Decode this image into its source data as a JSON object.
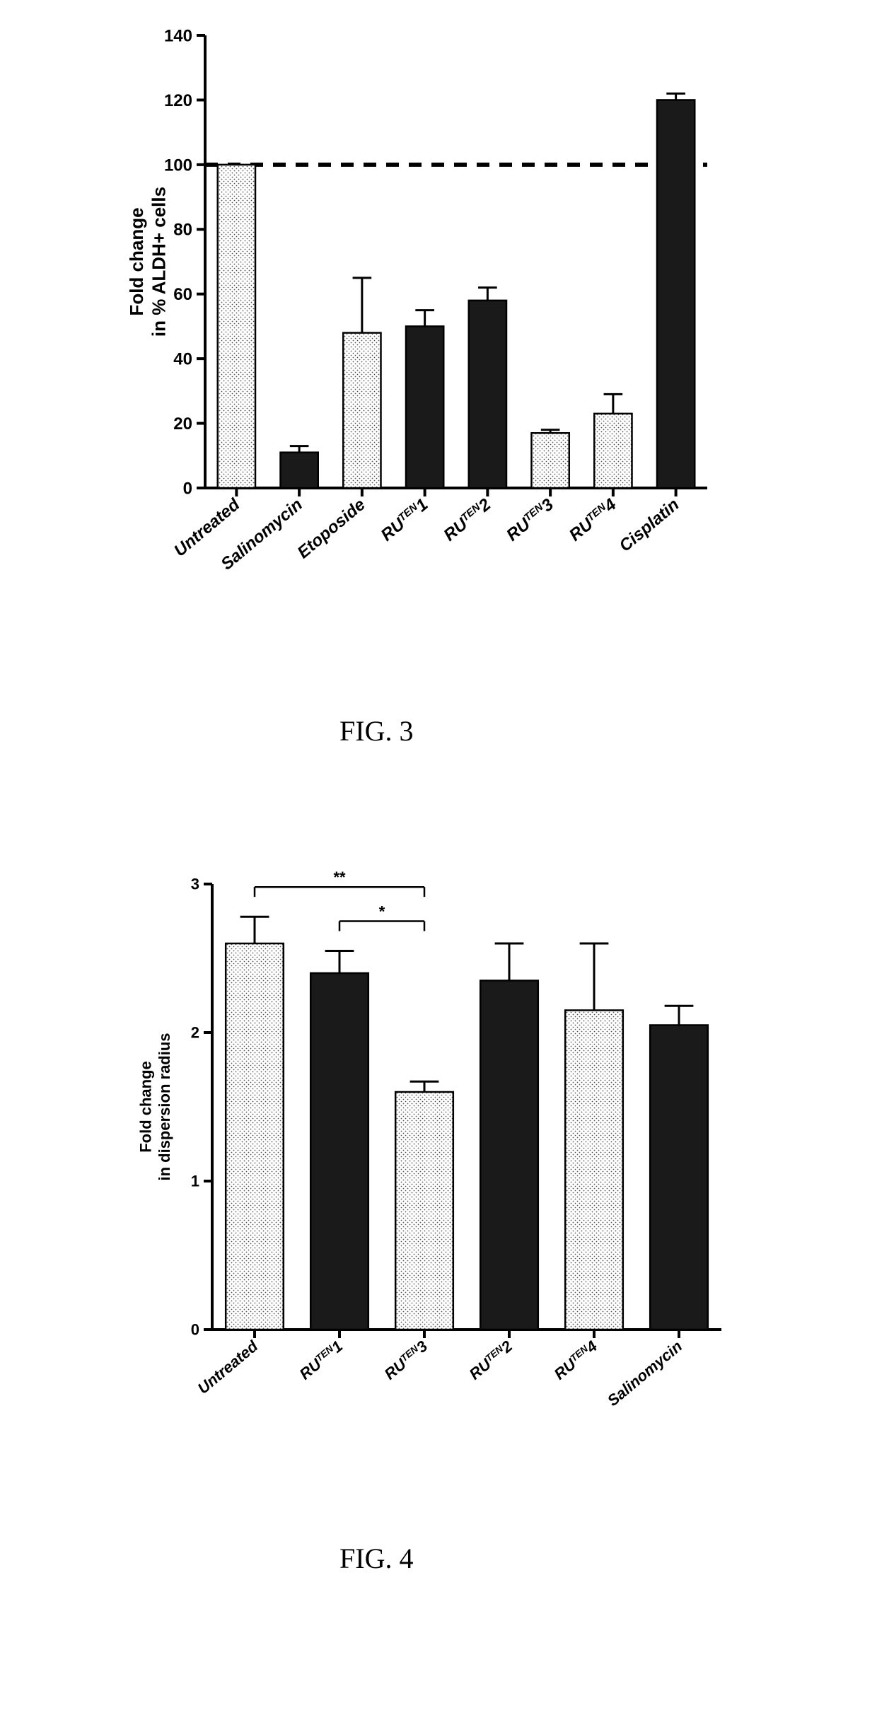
{
  "fig3": {
    "type": "bar",
    "caption": "FIG. 3",
    "ylabel_line1": "Fold change",
    "ylabel_line2": "in % ALDH+ cells",
    "ylim": [
      0,
      140
    ],
    "yticks": [
      0,
      20,
      40,
      60,
      80,
      100,
      120,
      140
    ],
    "reference_line": 100,
    "categories": [
      "Untreated",
      "Salinomycin",
      "Etoposide",
      "RU^TEN_1",
      "RU^TEN_2",
      "RU^TEN_3",
      "RU^TEN_4",
      "Cisplatin"
    ],
    "values": [
      100,
      11,
      48,
      50,
      58,
      17,
      23,
      120
    ],
    "error_up": [
      0,
      2,
      17,
      5,
      4,
      1,
      6,
      2
    ],
    "fills": [
      "dotted",
      "solid",
      "dotted",
      "solid",
      "solid",
      "dotted",
      "dotted",
      "solid"
    ],
    "axis_color": "#000000",
    "bar_solid_color": "#1a1a1a",
    "bar_dot_color": "#555555",
    "background_color": "#ffffff",
    "axis_fontsize": 26,
    "tick_fontsize": 24,
    "xlabel_fontsize": 24,
    "bar_width": 0.6
  },
  "fig4": {
    "type": "bar",
    "caption": "FIG. 4",
    "ylabel_line1": "Fold change",
    "ylabel_line2": "in dispersion radius",
    "ylim": [
      0,
      3
    ],
    "yticks": [
      0,
      1,
      2,
      3
    ],
    "categories": [
      "Untreated",
      "RU^TEN_1",
      "RU^TEN_3",
      "RU^TEN_2",
      "RU^TEN_4",
      "Salinomycin"
    ],
    "values": [
      2.6,
      2.4,
      1.6,
      2.35,
      2.15,
      2.05
    ],
    "error_up": [
      0.18,
      0.15,
      0.07,
      0.25,
      0.45,
      0.13
    ],
    "fills": [
      "dotted",
      "solid",
      "dotted",
      "solid",
      "dotted",
      "solid"
    ],
    "axis_color": "#000000",
    "bar_solid_color": "#1a1a1a",
    "bar_dot_color": "#555555",
    "background_color": "#ffffff",
    "axis_fontsize": 22,
    "tick_fontsize": 22,
    "xlabel_fontsize": 22,
    "bar_width": 0.68,
    "sig_brackets": [
      {
        "from": 0,
        "to": 2,
        "y": 2.98,
        "label": "**"
      },
      {
        "from": 1,
        "to": 2,
        "y": 2.75,
        "label": "*"
      }
    ]
  }
}
